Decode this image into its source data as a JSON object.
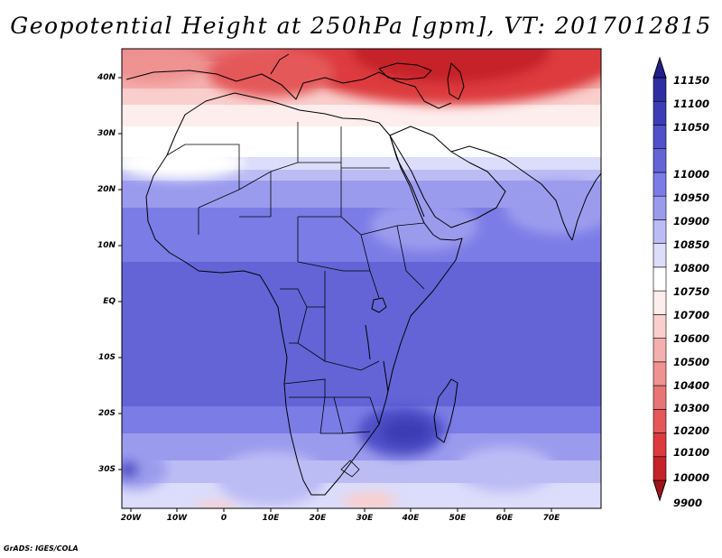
{
  "title": "Geopotential Height at 250hPa [gpm], VT: 2017012815",
  "credit": "GrADS: IGES/COLA",
  "map": {
    "lat_labels": [
      "40N",
      "30N",
      "20N",
      "10N",
      "EQ",
      "10S",
      "20S",
      "30S"
    ],
    "lon_labels": [
      "20W",
      "10W",
      "0",
      "10E",
      "20E",
      "30E",
      "40E",
      "50E",
      "60E",
      "70E"
    ]
  },
  "colorbar": {
    "levels": [
      "9900",
      "10000",
      "10100",
      "10200",
      "10300",
      "10400",
      "10500",
      "10600",
      "10700",
      "10750",
      "10800",
      "10850",
      "10900",
      "10950",
      "11000",
      "11050",
      "11100",
      "11150"
    ],
    "colors": [
      "#a01418",
      "#c5222a",
      "#dd3a3e",
      "#e4585a",
      "#e87575",
      "#ee9292",
      "#f3b0ae",
      "#f9cfcd",
      "#fdeeed",
      "#ffffff",
      "#dcdcfb",
      "#bcbcf5",
      "#9b9bee",
      "#7c7ce6",
      "#6464d7",
      "#5050c8",
      "#3c3cb6",
      "#2e2ea2",
      "#20208c"
    ]
  }
}
